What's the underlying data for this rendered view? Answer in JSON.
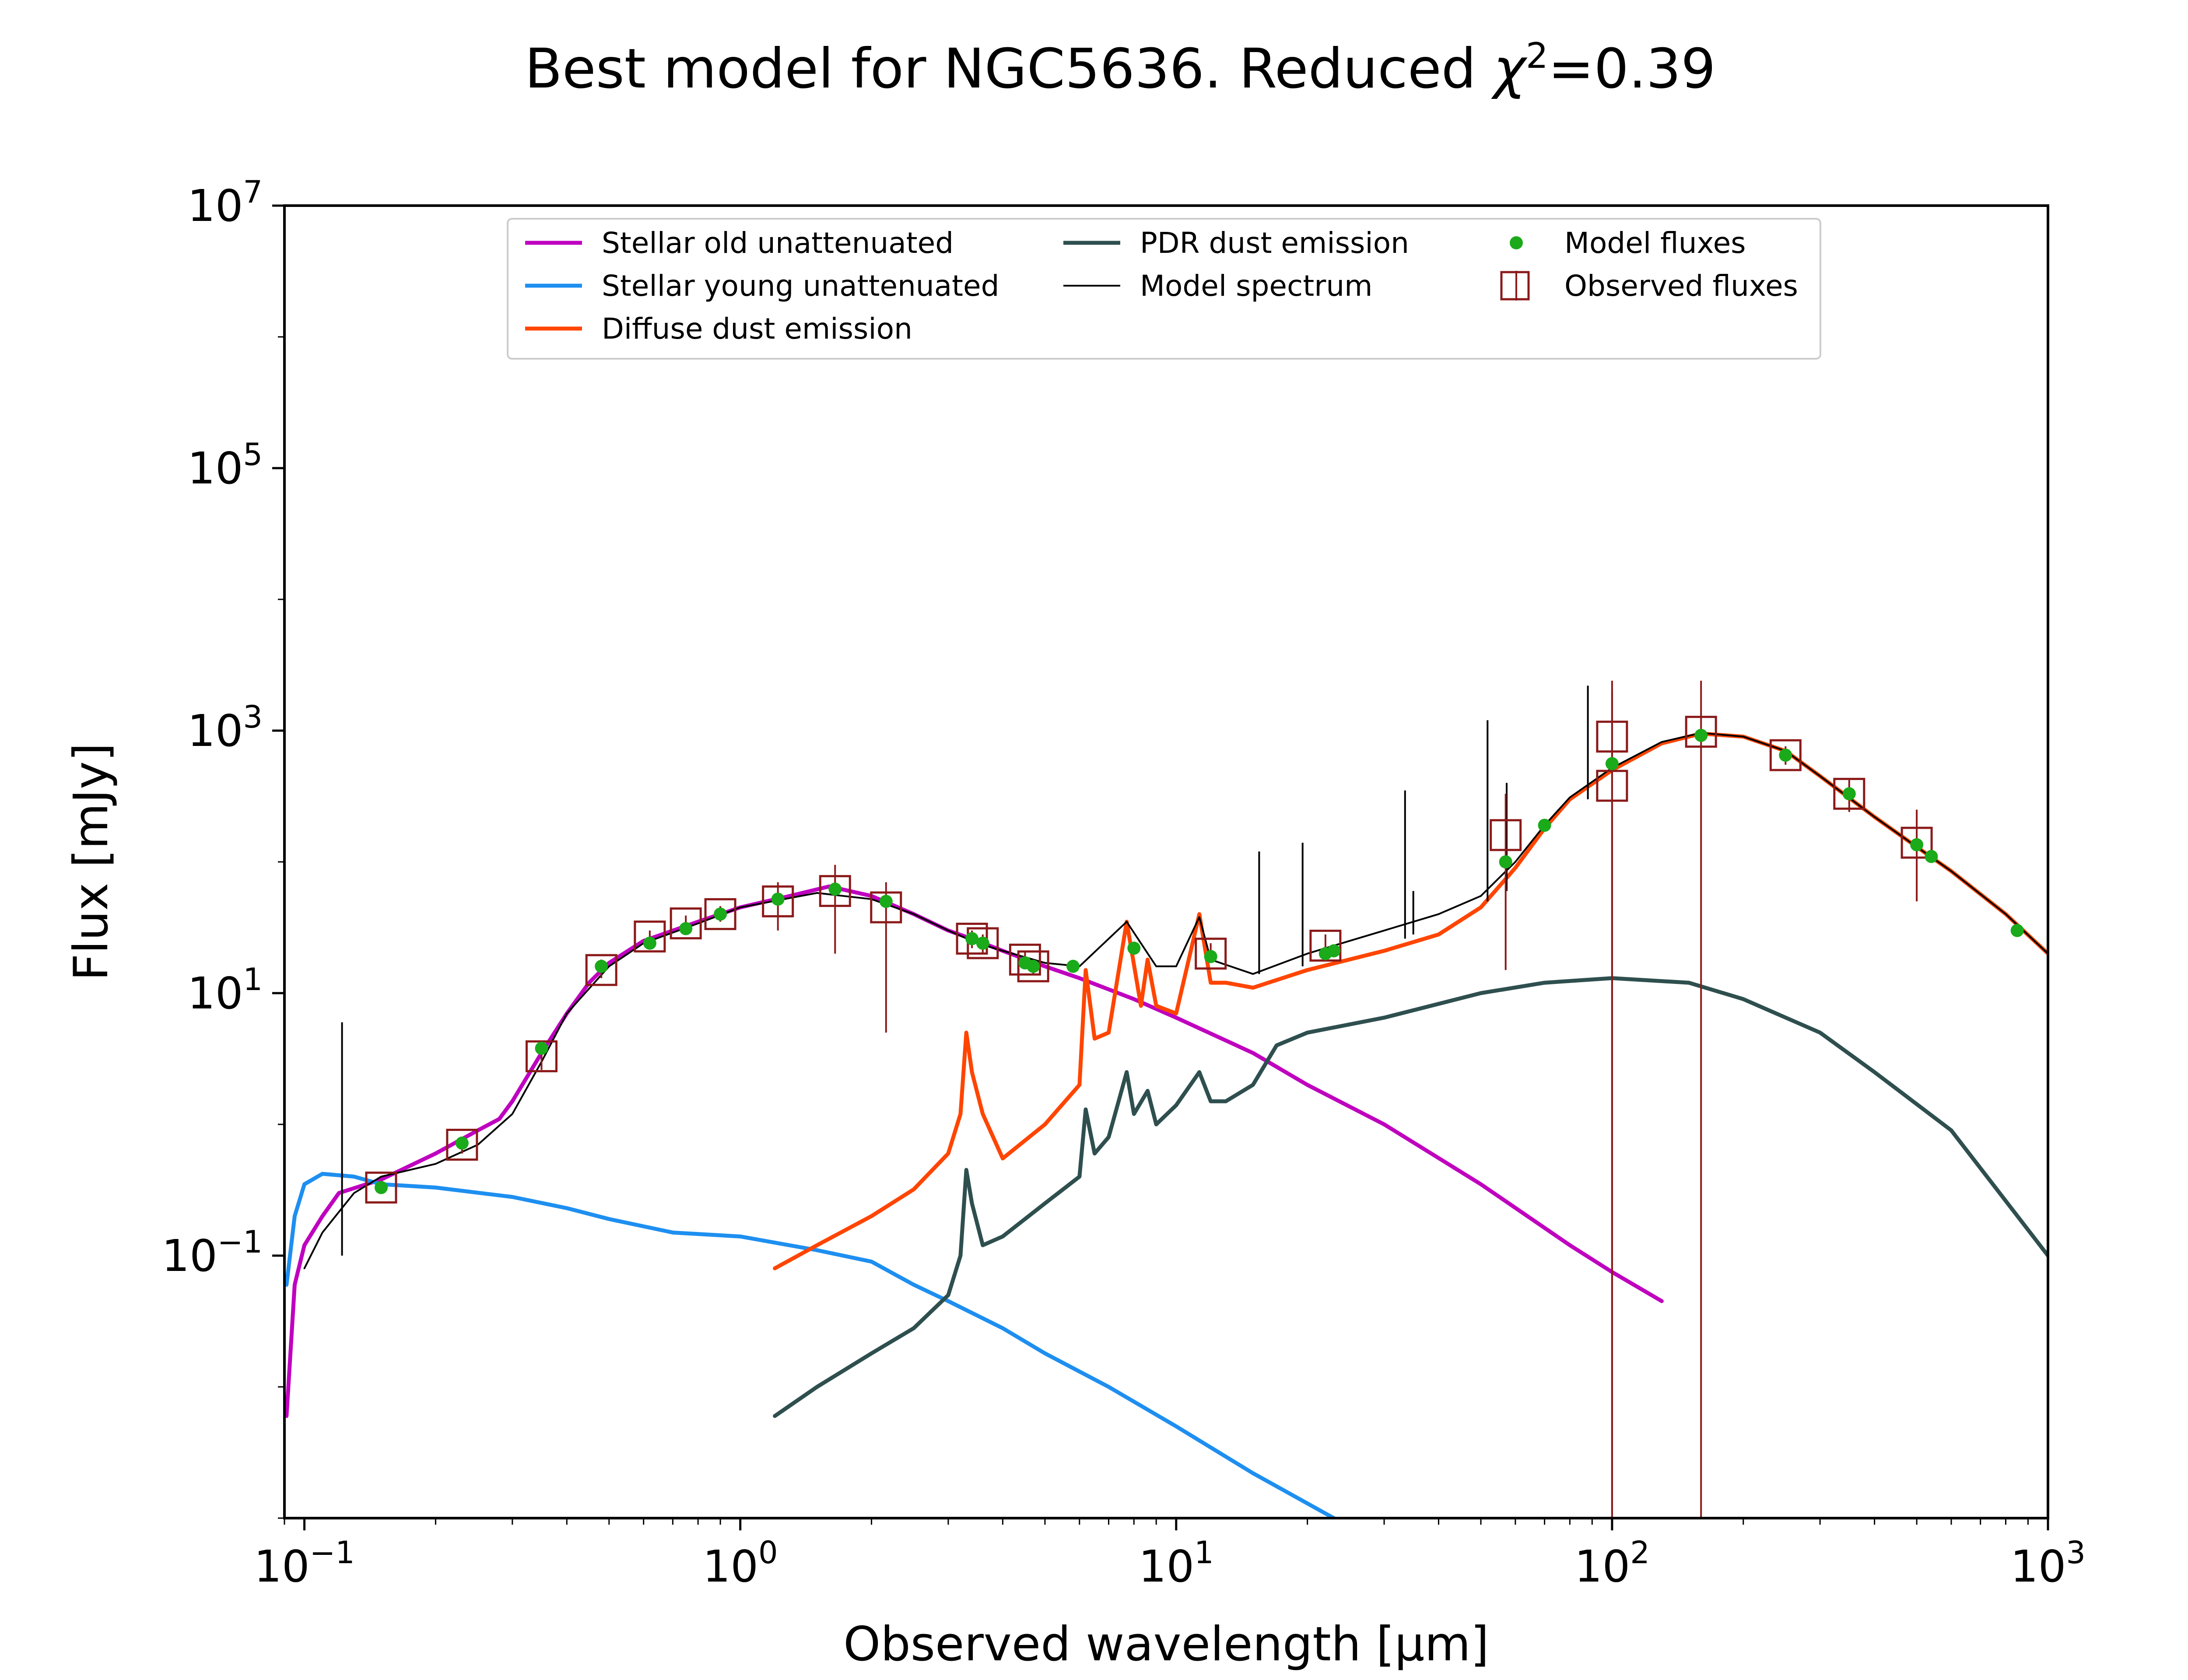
{
  "chart_data": {
    "type": "line",
    "title": "Best model for NGC5636. Reduced χ²=0.39",
    "title_parts": {
      "main": "Best model for NGC5636. Reduced ",
      "chi": "χ",
      "sup": "2",
      "value": "=0.39"
    },
    "xlabel": "Observed wavelength [μm]",
    "ylabel": "Flux [mJy]",
    "xscale": "log",
    "yscale": "log",
    "xlim": [
      0.09,
      1000
    ],
    "ylim": [
      0.001,
      10000000
    ],
    "grid": false,
    "legend_position": "top-center",
    "xticks": [
      {
        "value": 0.1,
        "base": "10",
        "exp": "−1"
      },
      {
        "value": 1,
        "base": "10",
        "exp": "0"
      },
      {
        "value": 10,
        "base": "10",
        "exp": "1"
      },
      {
        "value": 100,
        "base": "10",
        "exp": "2"
      },
      {
        "value": 1000,
        "base": "10",
        "exp": "3"
      }
    ],
    "yticks": [
      {
        "value": 0.1,
        "base": "10",
        "exp": "−1"
      },
      {
        "value": 10,
        "base": "10",
        "exp": "1"
      },
      {
        "value": 1000,
        "base": "10",
        "exp": "3"
      },
      {
        "value": 100000,
        "base": "10",
        "exp": "5"
      },
      {
        "value": 10000000,
        "base": "10",
        "exp": "7"
      }
    ],
    "series": [
      {
        "name": "Stellar old unattenuated",
        "kind": "line",
        "color": "#bf00bf",
        "points": [
          [
            0.091,
            0.006
          ],
          [
            0.095,
            0.06
          ],
          [
            0.1,
            0.12
          ],
          [
            0.11,
            0.2
          ],
          [
            0.12,
            0.3
          ],
          [
            0.15,
            0.38
          ],
          [
            0.2,
            0.6
          ],
          [
            0.25,
            0.9
          ],
          [
            0.28,
            1.1
          ],
          [
            0.3,
            1.5
          ],
          [
            0.35,
            3.5
          ],
          [
            0.4,
            7
          ],
          [
            0.45,
            12
          ],
          [
            0.5,
            17
          ],
          [
            0.6,
            25
          ],
          [
            0.8,
            35
          ],
          [
            1.0,
            45
          ],
          [
            1.3,
            55
          ],
          [
            1.6,
            65
          ],
          [
            2.0,
            55
          ],
          [
            2.5,
            40
          ],
          [
            3.0,
            30
          ],
          [
            3.5,
            25
          ],
          [
            4.0,
            21
          ],
          [
            5.0,
            16
          ],
          [
            6.0,
            13
          ],
          [
            8.0,
            9
          ],
          [
            10.0,
            6.5
          ],
          [
            15.0,
            3.5
          ],
          [
            20.0,
            2.0
          ],
          [
            30.0,
            1.0
          ],
          [
            50.0,
            0.35
          ],
          [
            80.0,
            0.12
          ],
          [
            100.0,
            0.075
          ],
          [
            130.0,
            0.045
          ]
        ]
      },
      {
        "name": "Stellar young unattenuated",
        "kind": "line",
        "color": "#1e8ff0",
        "points": [
          [
            0.091,
            0.06
          ],
          [
            0.095,
            0.2
          ],
          [
            0.1,
            0.35
          ],
          [
            0.11,
            0.42
          ],
          [
            0.13,
            0.4
          ],
          [
            0.15,
            0.35
          ],
          [
            0.2,
            0.33
          ],
          [
            0.3,
            0.28
          ],
          [
            0.4,
            0.23
          ],
          [
            0.5,
            0.19
          ],
          [
            0.7,
            0.15
          ],
          [
            1.0,
            0.14
          ],
          [
            1.5,
            0.11
          ],
          [
            2.0,
            0.09
          ],
          [
            2.5,
            0.06
          ],
          [
            3.0,
            0.045
          ],
          [
            4.0,
            0.028
          ],
          [
            5.0,
            0.018
          ],
          [
            7.0,
            0.01
          ],
          [
            10.0,
            0.005
          ],
          [
            15.0,
            0.0022
          ],
          [
            23.0,
            0.001
          ]
        ]
      },
      {
        "name": "Diffuse dust emission",
        "kind": "line",
        "color": "#ff4500",
        "points": [
          [
            1.2,
            0.08
          ],
          [
            1.5,
            0.12
          ],
          [
            2.0,
            0.2
          ],
          [
            2.5,
            0.32
          ],
          [
            3.0,
            0.6
          ],
          [
            3.2,
            1.2
          ],
          [
            3.3,
            5
          ],
          [
            3.4,
            2.5
          ],
          [
            3.6,
            1.2
          ],
          [
            4.0,
            0.55
          ],
          [
            5.0,
            1.0
          ],
          [
            6.0,
            2.0
          ],
          [
            6.2,
            15
          ],
          [
            6.5,
            4.5
          ],
          [
            7.0,
            5
          ],
          [
            7.7,
            35
          ],
          [
            8.3,
            8
          ],
          [
            8.6,
            18
          ],
          [
            9.0,
            8
          ],
          [
            10.0,
            7
          ],
          [
            11.3,
            40
          ],
          [
            12.0,
            12
          ],
          [
            13.0,
            12
          ],
          [
            15.0,
            11
          ],
          [
            20.0,
            15
          ],
          [
            30.0,
            21
          ],
          [
            40.0,
            28
          ],
          [
            50.0,
            45
          ],
          [
            60.0,
            90
          ],
          [
            70.0,
            180
          ],
          [
            80.0,
            300
          ],
          [
            100.0,
            500
          ],
          [
            130.0,
            800
          ],
          [
            160.0,
            950
          ],
          [
            200.0,
            900
          ],
          [
            250.0,
            700
          ],
          [
            300.0,
            450
          ],
          [
            400.0,
            220
          ],
          [
            500.0,
            130
          ],
          [
            600.0,
            85
          ],
          [
            800.0,
            40
          ],
          [
            1000.0,
            20
          ]
        ]
      },
      {
        "name": "PDR dust emission",
        "kind": "line",
        "color": "#2f4f4f",
        "points": [
          [
            1.2,
            0.006
          ],
          [
            1.5,
            0.01
          ],
          [
            2.0,
            0.018
          ],
          [
            2.5,
            0.028
          ],
          [
            3.0,
            0.05
          ],
          [
            3.2,
            0.1
          ],
          [
            3.3,
            0.45
          ],
          [
            3.4,
            0.25
          ],
          [
            3.6,
            0.12
          ],
          [
            4.0,
            0.14
          ],
          [
            5.0,
            0.25
          ],
          [
            6.0,
            0.4
          ],
          [
            6.2,
            1.3
          ],
          [
            6.5,
            0.6
          ],
          [
            7.0,
            0.8
          ],
          [
            7.7,
            2.5
          ],
          [
            8.0,
            1.2
          ],
          [
            8.6,
            1.8
          ],
          [
            9.0,
            1.0
          ],
          [
            10.0,
            1.4
          ],
          [
            11.3,
            2.5
          ],
          [
            12.0,
            1.5
          ],
          [
            13.0,
            1.5
          ],
          [
            15.0,
            2
          ],
          [
            17.0,
            4
          ],
          [
            20.0,
            5
          ],
          [
            30.0,
            6.5
          ],
          [
            50.0,
            10
          ],
          [
            70.0,
            12
          ],
          [
            100.0,
            13
          ],
          [
            150.0,
            12
          ],
          [
            200.0,
            9
          ],
          [
            300.0,
            5
          ],
          [
            400.0,
            2.5
          ],
          [
            600.0,
            0.9
          ],
          [
            1000.0,
            0.1
          ]
        ]
      },
      {
        "name": "Model spectrum",
        "kind": "line",
        "color": "#000000",
        "points": [
          [
            0.1,
            0.08
          ],
          [
            0.11,
            0.15
          ],
          [
            0.13,
            0.3
          ],
          [
            0.15,
            0.4
          ],
          [
            0.2,
            0.5
          ],
          [
            0.25,
            0.7
          ],
          [
            0.3,
            1.2
          ],
          [
            0.35,
            3
          ],
          [
            0.4,
            7
          ],
          [
            0.5,
            16
          ],
          [
            0.6,
            24
          ],
          [
            0.8,
            34
          ],
          [
            1.0,
            45
          ],
          [
            1.5,
            58
          ],
          [
            2.0,
            52
          ],
          [
            2.5,
            40
          ],
          [
            3.0,
            30
          ],
          [
            3.5,
            24
          ],
          [
            4.0,
            21
          ],
          [
            5.0,
            17
          ],
          [
            6.0,
            16
          ],
          [
            7.7,
            35
          ],
          [
            9.0,
            16
          ],
          [
            10.0,
            16
          ],
          [
            11.3,
            38
          ],
          [
            12.0,
            18
          ],
          [
            15.0,
            14
          ],
          [
            20.0,
            20
          ],
          [
            25.0,
            25
          ],
          [
            30.0,
            30
          ],
          [
            40.0,
            40
          ],
          [
            50.0,
            55
          ],
          [
            60.0,
            100
          ],
          [
            70.0,
            190
          ],
          [
            80.0,
            310
          ],
          [
            100.0,
            520
          ],
          [
            130.0,
            820
          ],
          [
            160.0,
            960
          ],
          [
            200.0,
            900
          ],
          [
            250.0,
            700
          ],
          [
            300.0,
            450
          ],
          [
            400.0,
            220
          ],
          [
            500.0,
            130
          ],
          [
            600.0,
            85
          ],
          [
            800.0,
            40
          ],
          [
            1000.0,
            20
          ]
        ],
        "spikes": [
          [
            0.122,
            0.1,
            6
          ],
          [
            15.5,
            14,
            120
          ],
          [
            19.5,
            16,
            140
          ],
          [
            33.5,
            26,
            350
          ],
          [
            35.0,
            28,
            60
          ],
          [
            51.8,
            50,
            1200
          ],
          [
            57.3,
            60,
            400
          ],
          [
            88.0,
            300,
            2200
          ]
        ]
      },
      {
        "name": "Model fluxes",
        "kind": "scatter",
        "color": "#1aaa1a",
        "points": [
          [
            0.15,
            0.33
          ],
          [
            0.23,
            0.72
          ],
          [
            0.35,
            3.8
          ],
          [
            0.48,
            16
          ],
          [
            0.62,
            24
          ],
          [
            0.75,
            31
          ],
          [
            0.9,
            40
          ],
          [
            1.22,
            52
          ],
          [
            1.65,
            62
          ],
          [
            2.16,
            50
          ],
          [
            3.4,
            26
          ],
          [
            3.6,
            24
          ],
          [
            4.5,
            17
          ],
          [
            4.7,
            16
          ],
          [
            5.8,
            16
          ],
          [
            8.0,
            22
          ],
          [
            12.0,
            19
          ],
          [
            22.0,
            20
          ],
          [
            23.0,
            21
          ],
          [
            57.0,
            100
          ],
          [
            70.0,
            190
          ],
          [
            100.0,
            560
          ],
          [
            160.0,
            920
          ],
          [
            250.0,
            650
          ],
          [
            350.0,
            330
          ],
          [
            500.0,
            135
          ],
          [
            540.0,
            110
          ],
          [
            850.0,
            30
          ]
        ]
      },
      {
        "name": "Observed fluxes",
        "kind": "errorbar",
        "color": "#8b1a1a",
        "points": [
          [
            0.15,
            0.33,
            0.3,
            0.36
          ],
          [
            0.23,
            0.7,
            0.6,
            0.8
          ],
          [
            0.35,
            3.3,
            2.6,
            4.2
          ],
          [
            0.48,
            15,
            13,
            18
          ],
          [
            0.62,
            27,
            24,
            30
          ],
          [
            0.75,
            34,
            30,
            39
          ],
          [
            0.9,
            40,
            35,
            46
          ],
          [
            1.22,
            50,
            30,
            70
          ],
          [
            1.65,
            60,
            20,
            95
          ],
          [
            2.16,
            45,
            5,
            70
          ],
          [
            3.4,
            26,
            22,
            30
          ],
          [
            3.6,
            24,
            20,
            28
          ],
          [
            4.5,
            18,
            16,
            21
          ],
          [
            4.7,
            16,
            14,
            18
          ],
          [
            12.0,
            20,
            17,
            24
          ],
          [
            22.0,
            23,
            19,
            28
          ],
          [
            57.0,
            160,
            15,
            330
          ],
          [
            100.0,
            380,
            0.001,
            2000
          ],
          [
            100.0,
            900,
            0.001,
            2400
          ],
          [
            160.0,
            980,
            0.001,
            2400
          ],
          [
            250.0,
            650,
            550,
            760
          ],
          [
            350.0,
            330,
            240,
            420
          ],
          [
            500.0,
            140,
            50,
            250
          ]
        ]
      }
    ]
  }
}
